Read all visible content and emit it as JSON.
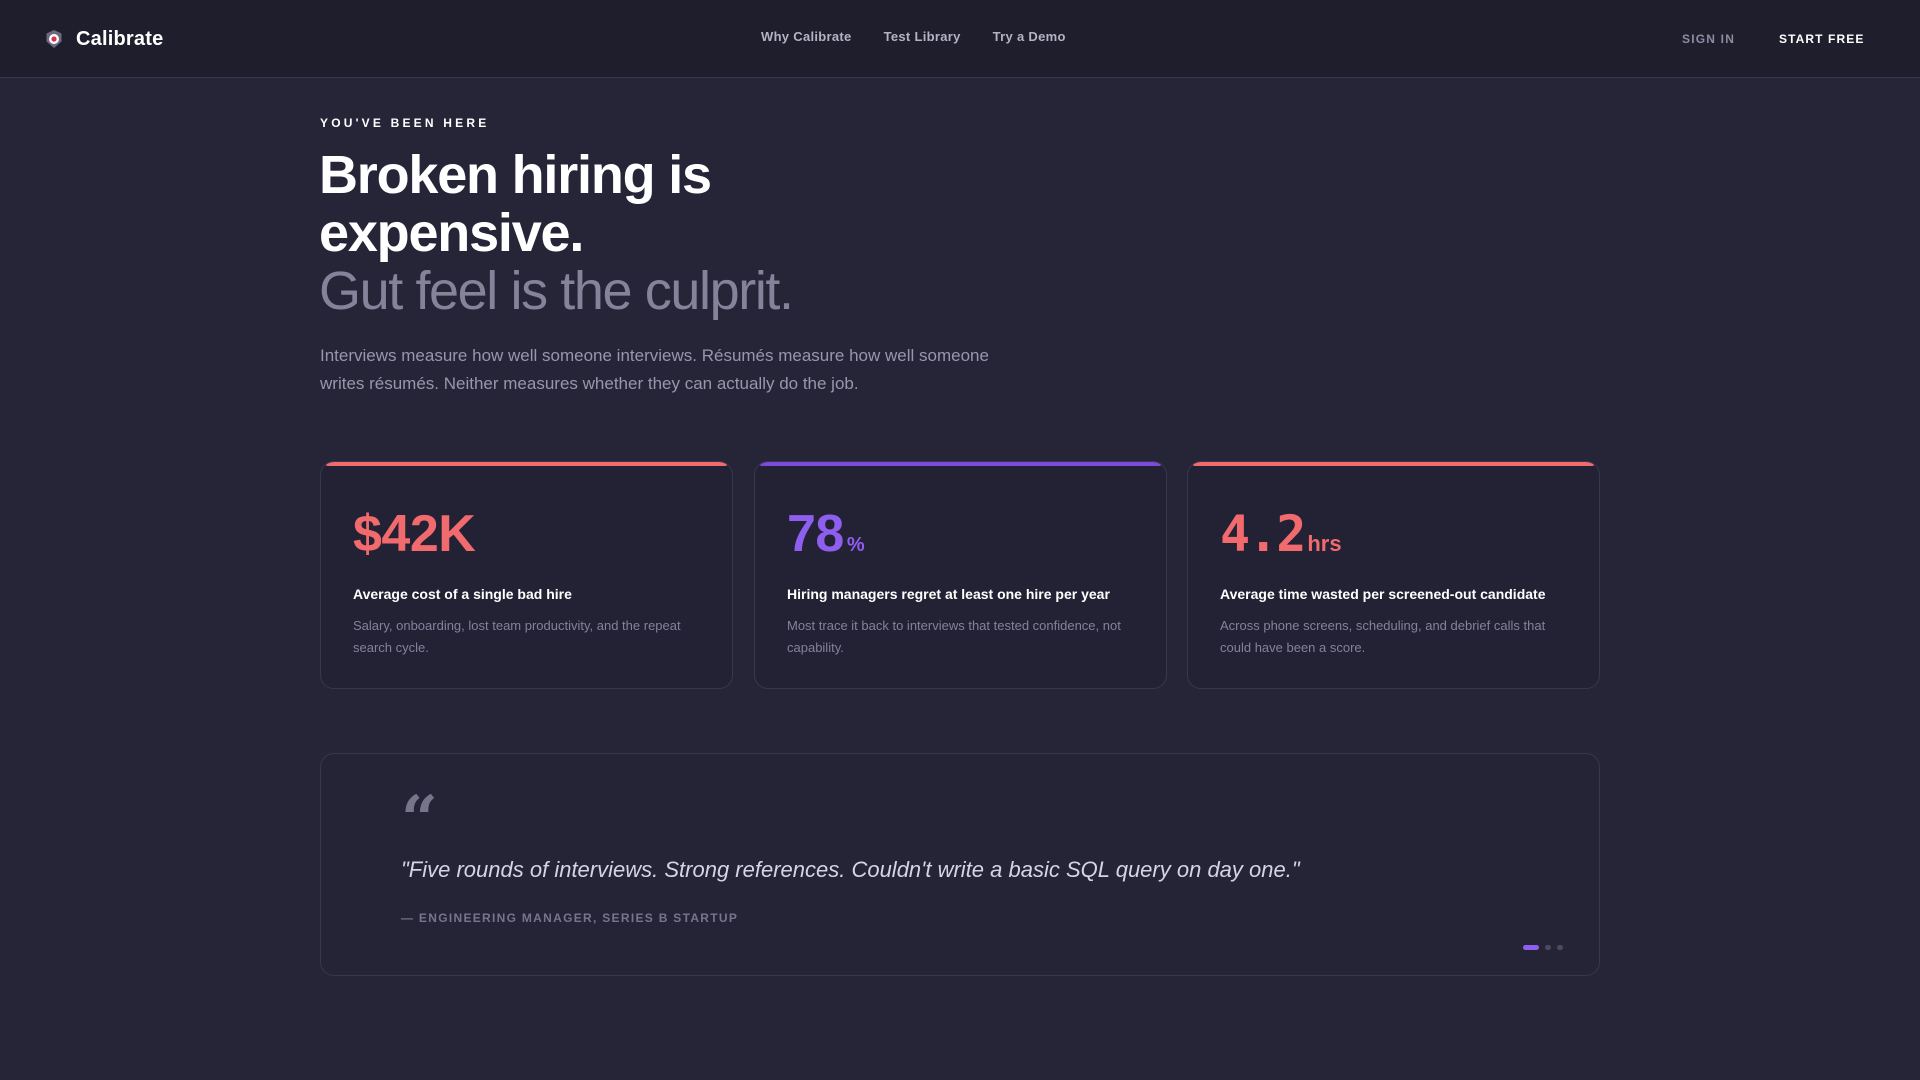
{
  "header": {
    "brand": "Calibrate",
    "nav": [
      {
        "label": "Why Calibrate"
      },
      {
        "label": "Test Library"
      },
      {
        "label": "Try a Demo"
      }
    ],
    "sign_in": "SIGN IN",
    "start_free": "START FREE"
  },
  "hero": {
    "eyebrow": "YOU'VE BEEN HERE",
    "headline_line1": "Broken hiring is",
    "headline_line2": "expensive.",
    "headline_muted": "Gut feel is the culprit.",
    "lead": "Interviews measure how well someone interviews. Résumés measure how well someone writes résumés. Neither measures whether they can actually do the job."
  },
  "stats": [
    {
      "value": "$42K",
      "unit": "",
      "title": "Average cost of a single bad hire",
      "description": "Salary, onboarding, lost team productivity, and the repeat search cycle.",
      "accent": "#f16a6e"
    },
    {
      "value": "78",
      "unit": "%",
      "title": "Hiring managers regret at least one hire per year",
      "description": "Most trace it back to interviews that tested confidence, not capability.",
      "accent": "#8d5ef0"
    },
    {
      "value": "4.2",
      "unit": "hrs",
      "title": "Average time wasted per screened-out candidate",
      "description": "Across phone screens, scheduling, and debrief calls that could have been a score.",
      "accent": "#f16a6e"
    }
  ],
  "testimonial": {
    "quote_mark": "“",
    "quote": "\"Five rounds of interviews. Strong references. Couldn't write a basic SQL query on day one.\"",
    "cite": "— ENGINEERING MANAGER, SERIES B STARTUP",
    "slides_total": 3,
    "active_slide": 1
  },
  "colors": {
    "background": "#262538",
    "header": "#1f1e2d",
    "accent_red": "#f16a6e",
    "accent_purple": "#8d5ef0"
  }
}
